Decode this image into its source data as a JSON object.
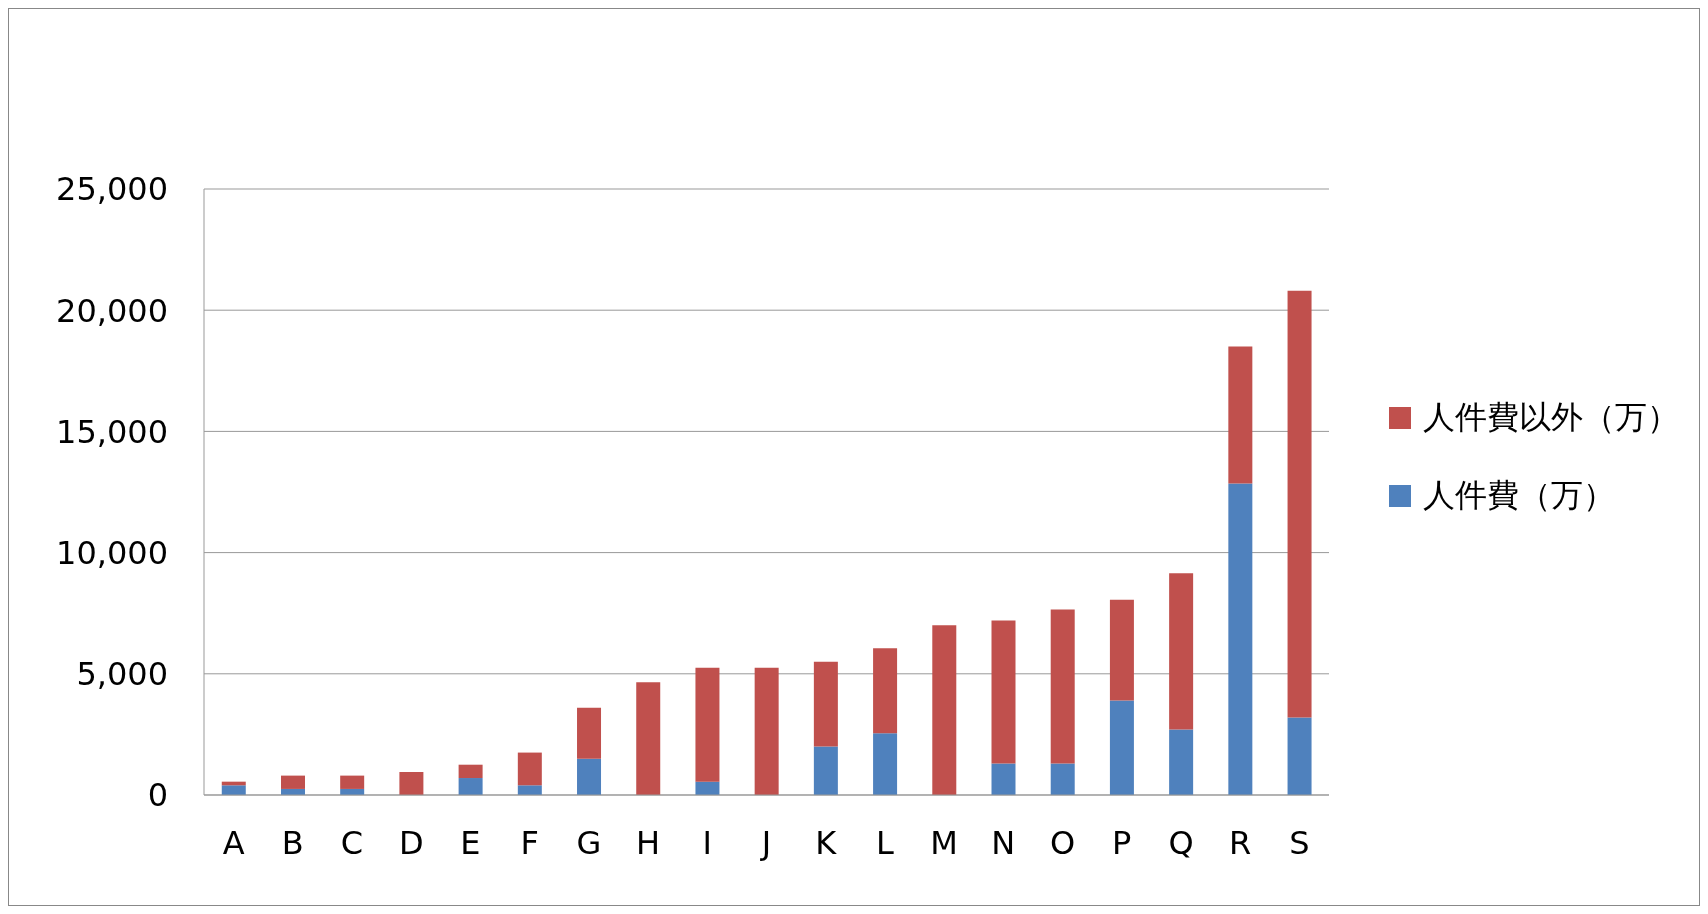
{
  "chart_data": {
    "type": "bar",
    "stacked": true,
    "categories": [
      "A",
      "B",
      "C",
      "D",
      "E",
      "F",
      "G",
      "H",
      "I",
      "J",
      "K",
      "L",
      "M",
      "N",
      "O",
      "P",
      "Q",
      "R",
      "S"
    ],
    "series": [
      {
        "name": "人件費（万）",
        "color": "#4f81bd",
        "values": [
          400,
          250,
          250,
          0,
          700,
          400,
          1500,
          0,
          550,
          0,
          2000,
          2550,
          0,
          1300,
          1300,
          3900,
          2700,
          12850,
          3200
        ]
      },
      {
        "name": "人件費以外（万）",
        "color": "#c0504d",
        "values": [
          150,
          550,
          550,
          950,
          550,
          1350,
          2100,
          4650,
          4700,
          5250,
          3500,
          3500,
          7000,
          5900,
          6350,
          4150,
          6450,
          5650,
          17600
        ]
      }
    ],
    "ylim": [
      0,
      25000
    ],
    "yticks": [
      {
        "value": 0,
        "label": "0"
      },
      {
        "value": 5000,
        "label": "5,000"
      },
      {
        "value": 10000,
        "label": "10,000"
      },
      {
        "value": 15000,
        "label": "15,000"
      },
      {
        "value": 20000,
        "label": "20,000"
      },
      {
        "value": 25000,
        "label": "25,000"
      }
    ],
    "grid": "y",
    "legend": "right"
  }
}
